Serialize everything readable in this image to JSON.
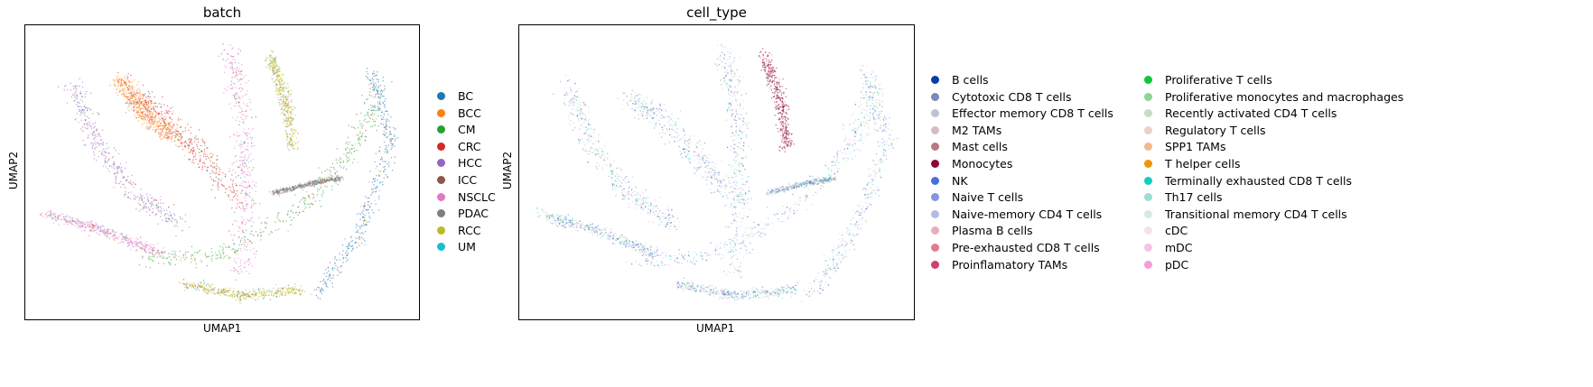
{
  "chart_data": [
    {
      "type": "scatter",
      "title": "batch",
      "xlabel": "UMAP1",
      "ylabel": "UMAP2",
      "grid": false,
      "legend_position": "right",
      "series": [
        {
          "name": "BC",
          "color": "#1f77b4"
        },
        {
          "name": "BCC",
          "color": "#ff7f0e"
        },
        {
          "name": "CM",
          "color": "#2ca02c"
        },
        {
          "name": "CRC",
          "color": "#d62728"
        },
        {
          "name": "HCC",
          "color": "#9467bd"
        },
        {
          "name": "ICC",
          "color": "#8c564b"
        },
        {
          "name": "NSCLC",
          "color": "#e377c2"
        },
        {
          "name": "PDAC",
          "color": "#7f7f7f"
        },
        {
          "name": "RCC",
          "color": "#bcbd22"
        },
        {
          "name": "UM",
          "color": "#17becf"
        }
      ]
    },
    {
      "type": "scatter",
      "title": "cell_type",
      "xlabel": "UMAP1",
      "ylabel": "UMAP2",
      "grid": false,
      "legend_position": "right",
      "series": [
        {
          "name": "B cells",
          "color": "#023fa5"
        },
        {
          "name": "Cytotoxic CD8 T cells",
          "color": "#7d87b9"
        },
        {
          "name": "Effector memory CD8 T cells",
          "color": "#bec1d4"
        },
        {
          "name": "M2 TAMs",
          "color": "#d6bcc0"
        },
        {
          "name": "Mast cells",
          "color": "#bb7784"
        },
        {
          "name": "Monocytes",
          "color": "#8e063b"
        },
        {
          "name": "NK",
          "color": "#4a6fe3"
        },
        {
          "name": "Naive T cells",
          "color": "#8595e1"
        },
        {
          "name": "Naive-memory CD4 T cells",
          "color": "#b5bbe3"
        },
        {
          "name": "Plasma B cells",
          "color": "#e6afb9"
        },
        {
          "name": "Pre-exhausted CD8 T cells",
          "color": "#e07b91"
        },
        {
          "name": "Proinflamatory TAMs",
          "color": "#d33f6a"
        },
        {
          "name": "Proliferative T cells",
          "color": "#11c638"
        },
        {
          "name": "Proliferative monocytes and macrophages",
          "color": "#8dd593"
        },
        {
          "name": "Recently activated CD4 T cells",
          "color": "#c6dec7"
        },
        {
          "name": "Regulatory T cells",
          "color": "#ead3c6"
        },
        {
          "name": "SPP1 TAMs",
          "color": "#f0b98d"
        },
        {
          "name": "T helper cells",
          "color": "#ef9708"
        },
        {
          "name": "Terminally exhausted CD8 T cells",
          "color": "#0fcfc0"
        },
        {
          "name": "Th17 cells",
          "color": "#9cded6"
        },
        {
          "name": "Transitional memory CD4 T cells",
          "color": "#d5eae7"
        },
        {
          "name": "cDC",
          "color": "#f3e1eb"
        },
        {
          "name": "mDC",
          "color": "#f6c4e1"
        },
        {
          "name": "pDC",
          "color": "#f79cd4"
        }
      ]
    }
  ]
}
